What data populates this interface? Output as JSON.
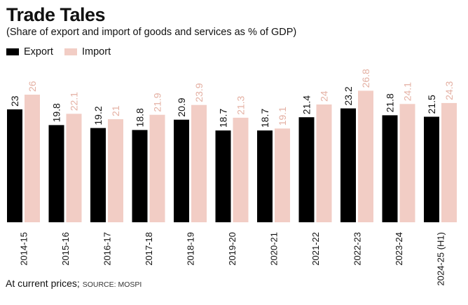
{
  "chart_data": {
    "type": "bar",
    "title": "Trade Tales",
    "subtitle": "(Share of export and import of goods and services as % of GDP)",
    "categories": [
      "2014-15",
      "2015-16",
      "2016-17",
      "2017-18",
      "2018-19",
      "2019-20",
      "2020-21",
      "2021-22",
      "2022-23",
      "2023-24",
      "2024-25 (H1)"
    ],
    "series": [
      {
        "name": "Export",
        "color": "#000000",
        "label_color": "#111111",
        "values": [
          23,
          19.8,
          19.2,
          18.8,
          20.9,
          18.7,
          18.7,
          21.4,
          23.2,
          21.8,
          21.5
        ]
      },
      {
        "name": "Import",
        "color": "#f2cdc5",
        "label_color": "#e4b0a3",
        "values": [
          26,
          22.1,
          21,
          21.9,
          23.9,
          21.3,
          19.1,
          24,
          26.8,
          24.1,
          24.3
        ]
      }
    ],
    "legend": "top-left",
    "grid": false,
    "ylim": [
      0,
      28
    ],
    "footnote": "At current prices;",
    "source": "SOURCE: MOSPI"
  }
}
